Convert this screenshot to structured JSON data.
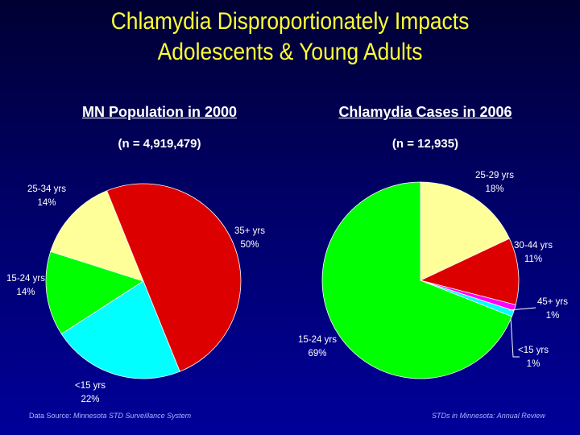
{
  "title_line1": "Chlamydia Disproportionately Impacts",
  "title_line2": "Adolescents & Young Adults",
  "footer": {
    "source_label": "Data Source: ",
    "source_name": "Minnesota STD Surveillance System",
    "right": "STDs in Minnesota: Annual Review"
  },
  "chart_data": [
    {
      "type": "pie",
      "title": "MN Population in 2000",
      "subtitle": "(n = 4,919,479)",
      "slices": [
        {
          "label": "35+ yrs",
          "value": 50,
          "pct": "50%",
          "color": "#dd0000"
        },
        {
          "label": "<15 yrs",
          "value": 22,
          "pct": "22%",
          "color": "#00ffff"
        },
        {
          "label": "15-24 yrs",
          "value": 14,
          "pct": "14%",
          "color": "#00ff00"
        },
        {
          "label": "25-34 yrs",
          "value": 14,
          "pct": "14%",
          "color": "#ffff99"
        }
      ]
    },
    {
      "type": "pie",
      "title": "Chlamydia Cases in 2006",
      "subtitle": "(n = 12,935)",
      "slices": [
        {
          "label": "25-29 yrs",
          "value": 18,
          "pct": "18%",
          "color": "#ffff99"
        },
        {
          "label": "30-44 yrs",
          "value": 11,
          "pct": "11%",
          "color": "#dd0000"
        },
        {
          "label": "45+ yrs",
          "value": 1,
          "pct": "1%",
          "color": "#ff00ff"
        },
        {
          "label": "<15 yrs",
          "value": 1,
          "pct": "1%",
          "color": "#00ffff"
        },
        {
          "label": "15-24 yrs",
          "value": 69,
          "pct": "69%",
          "color": "#00ff00"
        }
      ]
    }
  ]
}
